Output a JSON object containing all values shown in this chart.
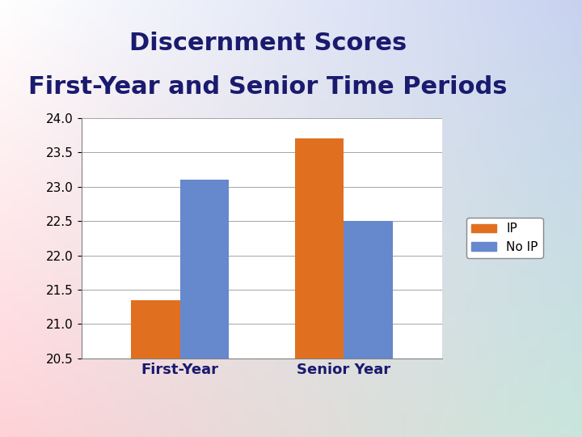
{
  "title_line1": "Discernment Scores",
  "title_line2": "First-Year and Senior Time Periods",
  "categories": [
    "First-Year",
    "Senior Year"
  ],
  "ip_values": [
    21.35,
    23.7
  ],
  "no_ip_values": [
    23.1,
    22.5
  ],
  "ip_color": "#E07020",
  "no_ip_color": "#6688CC",
  "ylim": [
    20.5,
    24.0
  ],
  "yticks": [
    20.5,
    21.0,
    21.5,
    22.0,
    22.5,
    23.0,
    23.5,
    24.0
  ],
  "title_color": "#1a1a6e",
  "title_fontsize": 22,
  "bar_width": 0.3,
  "legend_labels": [
    "IP",
    "No IP"
  ],
  "xlabel_fontsize": 13,
  "bg_tl": [
    255,
    255,
    255
  ],
  "bg_tr": [
    200,
    210,
    240
  ],
  "bg_bl": [
    255,
    210,
    215
  ],
  "bg_br": [
    200,
    230,
    220
  ]
}
